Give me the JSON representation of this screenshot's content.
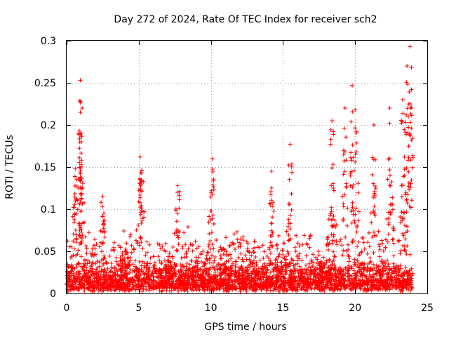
{
  "chart_data": {
    "type": "scatter",
    "title": "Day 272 of 2024, Rate Of TEC Index for receiver sch2",
    "xlabel": "GPS time / hours",
    "ylabel": "ROTI / TECUs",
    "xlim": [
      0,
      25
    ],
    "ylim": [
      0,
      0.3
    ],
    "x_ticks": [
      0,
      5,
      10,
      15,
      20,
      25
    ],
    "x_tick_labels": [
      "0",
      "5",
      "10",
      "15",
      "20",
      "25"
    ],
    "y_ticks": [
      0,
      0.05,
      0.1,
      0.15,
      0.2,
      0.25,
      0.3
    ],
    "y_tick_labels": [
      "0",
      "0.05",
      "0.1",
      "0.15",
      "0.2",
      "0.25",
      "0.3"
    ],
    "grid": true,
    "marker": "+",
    "color": "#ff0000",
    "series": [
      {
        "name": "ROTI",
        "x_range": [
          0,
          24
        ],
        "baseline": [
          0.005,
          0.03
        ],
        "noted_peaks": [
          {
            "x": 0.6,
            "y": 0.148
          },
          {
            "x": 0.95,
            "y": 0.253
          },
          {
            "x": 0.95,
            "y": 0.215
          },
          {
            "x": 1.0,
            "y": 0.19
          },
          {
            "x": 1.0,
            "y": 0.153
          },
          {
            "x": 2.5,
            "y": 0.115
          },
          {
            "x": 5.1,
            "y": 0.162
          },
          {
            "x": 5.2,
            "y": 0.143
          },
          {
            "x": 7.7,
            "y": 0.128
          },
          {
            "x": 10.1,
            "y": 0.16
          },
          {
            "x": 14.2,
            "y": 0.145
          },
          {
            "x": 15.5,
            "y": 0.177
          },
          {
            "x": 18.4,
            "y": 0.205
          },
          {
            "x": 19.3,
            "y": 0.22
          },
          {
            "x": 19.8,
            "y": 0.247
          },
          {
            "x": 20.0,
            "y": 0.218
          },
          {
            "x": 21.3,
            "y": 0.2
          },
          {
            "x": 22.4,
            "y": 0.22
          },
          {
            "x": 23.3,
            "y": 0.23
          },
          {
            "x": 23.6,
            "y": 0.27
          },
          {
            "x": 23.8,
            "y": 0.293
          },
          {
            "x": 23.9,
            "y": 0.242
          }
        ]
      }
    ]
  }
}
